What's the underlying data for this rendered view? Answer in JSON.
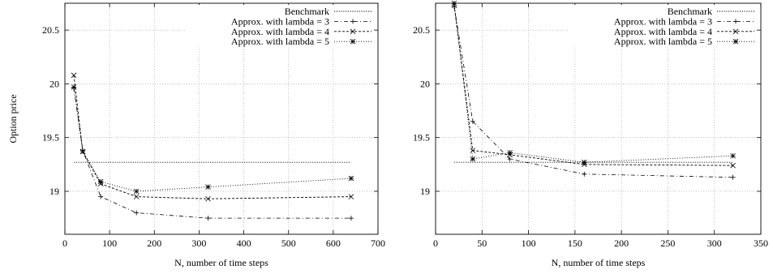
{
  "chart_data": [
    {
      "type": "line",
      "xlabel": "N, number of time steps",
      "ylabel": "Option price",
      "xlim": [
        0,
        700
      ],
      "ylim": [
        18.6,
        20.75
      ],
      "xticks": [
        "0",
        "100",
        "200",
        "300",
        "400",
        "500",
        "600",
        "700"
      ],
      "yticks": [
        "19",
        "19.5",
        "20",
        "20.5"
      ],
      "grid": true,
      "legend_position": "top-right",
      "series": [
        {
          "name": "Benchmark",
          "x": [
            20,
            640
          ],
          "y": [
            19.27,
            19.27
          ]
        },
        {
          "name": "Approx. with lambda = 3",
          "x": [
            20,
            40,
            80,
            160,
            320,
            640
          ],
          "y": [
            19.96,
            19.38,
            18.95,
            18.8,
            18.75,
            18.75
          ]
        },
        {
          "name": "Approx. with lambda = 4",
          "x": [
            20,
            40,
            80,
            160,
            320,
            640
          ],
          "y": [
            20.08,
            19.37,
            19.07,
            18.95,
            18.93,
            18.95
          ]
        },
        {
          "name": "Approx. with lambda = 5",
          "x": [
            20,
            40,
            80,
            160,
            320,
            640
          ],
          "y": [
            19.97,
            19.37,
            19.09,
            19.0,
            19.04,
            19.12
          ]
        }
      ]
    },
    {
      "type": "line",
      "xlabel": "N, number of time steps",
      "ylabel": "",
      "xlim": [
        0,
        350
      ],
      "ylim": [
        18.6,
        20.75
      ],
      "xticks": [
        "0",
        "50",
        "100",
        "150",
        "200",
        "250",
        "300",
        "350"
      ],
      "yticks": [
        "19",
        "19.5",
        "20",
        "20.5"
      ],
      "grid": true,
      "legend_position": "top-right",
      "series": [
        {
          "name": "Benchmark",
          "x": [
            20,
            320
          ],
          "y": [
            19.27,
            19.27
          ]
        },
        {
          "name": "Approx. with lambda = 3",
          "x": [
            20,
            40,
            80,
            160,
            320
          ],
          "y": [
            20.72,
            19.65,
            19.3,
            19.16,
            19.13
          ]
        },
        {
          "name": "Approx. with lambda = 4",
          "x": [
            20,
            40,
            80,
            160,
            320
          ],
          "y": [
            20.73,
            19.38,
            19.34,
            19.25,
            19.24
          ]
        },
        {
          "name": "Approx. with lambda = 5",
          "x": [
            20,
            40,
            80,
            160,
            320
          ],
          "y": [
            20.75,
            19.3,
            19.36,
            19.27,
            19.33
          ]
        }
      ]
    }
  ]
}
